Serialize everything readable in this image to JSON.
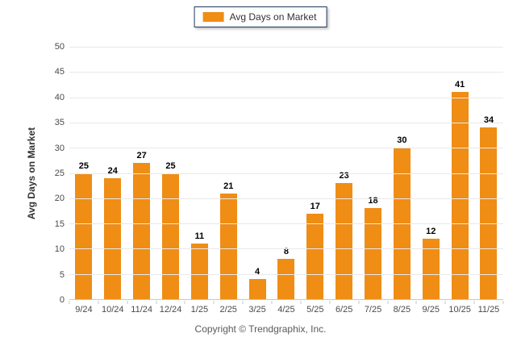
{
  "legend": {
    "label": "Avg Days on Market",
    "swatch_color": "#ef8d15",
    "border_color": "#1e3a5e"
  },
  "chart_data": {
    "type": "bar",
    "categories": [
      "9/24",
      "10/24",
      "11/24",
      "12/24",
      "1/25",
      "2/25",
      "3/25",
      "4/25",
      "5/25",
      "6/25",
      "7/25",
      "8/25",
      "9/25",
      "10/25",
      "11/25"
    ],
    "values": [
      25,
      24,
      27,
      25,
      11,
      21,
      4,
      8,
      17,
      23,
      18,
      30,
      12,
      41,
      34
    ],
    "title": "",
    "xlabel": "",
    "ylabel": "Avg Days on Market",
    "ylim": [
      0,
      50
    ],
    "ytick_step": 5,
    "bar_color": "#ef8d15",
    "grid": true,
    "legend_position": "top-center",
    "legend_entries": [
      "Avg Days on Market"
    ]
  },
  "footer": {
    "copyright": "Copyright © Trendgraphix, Inc."
  }
}
